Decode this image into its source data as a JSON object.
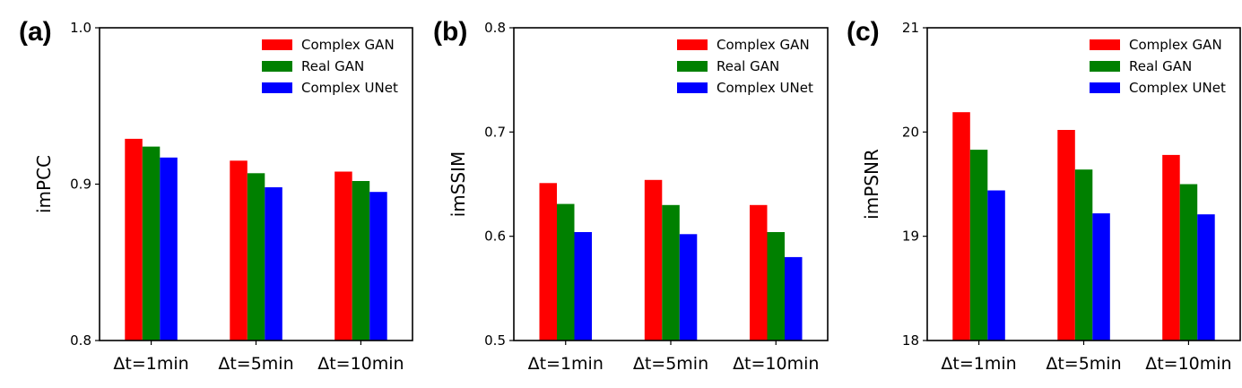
{
  "chart_data": [
    {
      "type": "bar",
      "panel_label": "(a)",
      "ylabel": "imPCC",
      "categories": [
        "Δt=1min",
        "Δt=5min",
        "Δt=10min"
      ],
      "ylim": [
        0.8,
        1.0
      ],
      "yticks": [
        0.8,
        0.9,
        1.0
      ],
      "ytick_labels": [
        "0.8",
        "0.9",
        "1.0"
      ],
      "series": [
        {
          "name": "Complex GAN",
          "color": "#ff0000",
          "values": [
            0.929,
            0.915,
            0.908
          ]
        },
        {
          "name": "Real GAN",
          "color": "#008000",
          "values": [
            0.924,
            0.907,
            0.902
          ]
        },
        {
          "name": "Complex UNet",
          "color": "#0000ff",
          "values": [
            0.917,
            0.898,
            0.895
          ]
        }
      ],
      "legend_position": "top-right",
      "grid": false
    },
    {
      "type": "bar",
      "panel_label": "(b)",
      "ylabel": "imSSIM",
      "categories": [
        "Δt=1min",
        "Δt=5min",
        "Δt=10min"
      ],
      "ylim": [
        0.5,
        0.8
      ],
      "yticks": [
        0.5,
        0.6,
        0.7,
        0.8
      ],
      "ytick_labels": [
        "0.5",
        "0.6",
        "0.7",
        "0.8"
      ],
      "series": [
        {
          "name": "Complex GAN",
          "color": "#ff0000",
          "values": [
            0.651,
            0.654,
            0.63
          ]
        },
        {
          "name": "Real GAN",
          "color": "#008000",
          "values": [
            0.631,
            0.63,
            0.604
          ]
        },
        {
          "name": "Complex UNet",
          "color": "#0000ff",
          "values": [
            0.604,
            0.602,
            0.58
          ]
        }
      ],
      "legend_position": "top-right",
      "grid": false
    },
    {
      "type": "bar",
      "panel_label": "(c)",
      "ylabel": "imPSNR",
      "categories": [
        "Δt=1min",
        "Δt=5min",
        "Δt=10min"
      ],
      "ylim": [
        18,
        21
      ],
      "yticks": [
        18,
        19,
        20,
        21
      ],
      "ytick_labels": [
        "18",
        "19",
        "20",
        "21"
      ],
      "series": [
        {
          "name": "Complex GAN",
          "color": "#ff0000",
          "values": [
            20.19,
            20.02,
            19.78
          ]
        },
        {
          "name": "Real GAN",
          "color": "#008000",
          "values": [
            19.83,
            19.64,
            19.5
          ]
        },
        {
          "name": "Complex UNet",
          "color": "#0000ff",
          "values": [
            19.44,
            19.22,
            19.21
          ]
        }
      ],
      "legend_position": "top-right",
      "grid": false
    }
  ]
}
